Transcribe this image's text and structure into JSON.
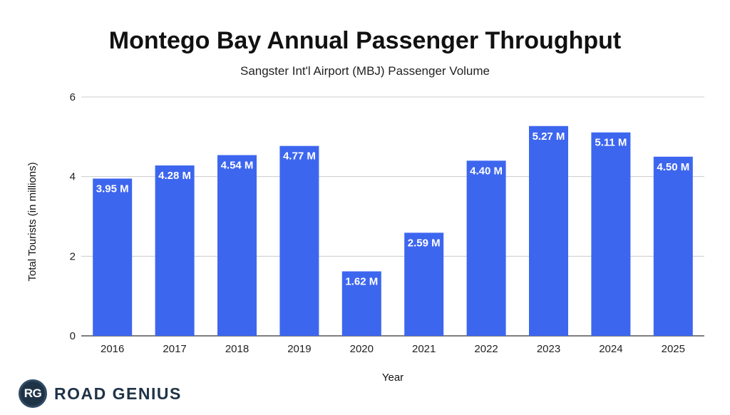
{
  "chart_data": {
    "type": "bar",
    "title": "Montego Bay Annual Passenger Throughput",
    "subtitle": "Sangster Int'l Airport (MBJ) Passenger Volume",
    "xlabel": "Year",
    "ylabel": "Total Tourists (in millions)",
    "ylim": [
      0,
      6
    ],
    "yticks": [
      0,
      2,
      4,
      6
    ],
    "grid": true,
    "bar_color": "#3d66ef",
    "categories": [
      "2016",
      "2017",
      "2018",
      "2019",
      "2020",
      "2021",
      "2022",
      "2023",
      "2024",
      "2025"
    ],
    "values": [
      3.95,
      4.28,
      4.54,
      4.77,
      1.62,
      2.59,
      4.4,
      5.27,
      5.11,
      4.5
    ],
    "data_labels": [
      "3.95 M",
      "4.28 M",
      "4.54 M",
      "4.77 M",
      "1.62 M",
      "2.59 M",
      "4.40 M",
      "5.27 M",
      "5.11 M",
      "4.50 M"
    ]
  },
  "brand": {
    "logo_text": "RG",
    "name": "ROAD GENIUS"
  }
}
